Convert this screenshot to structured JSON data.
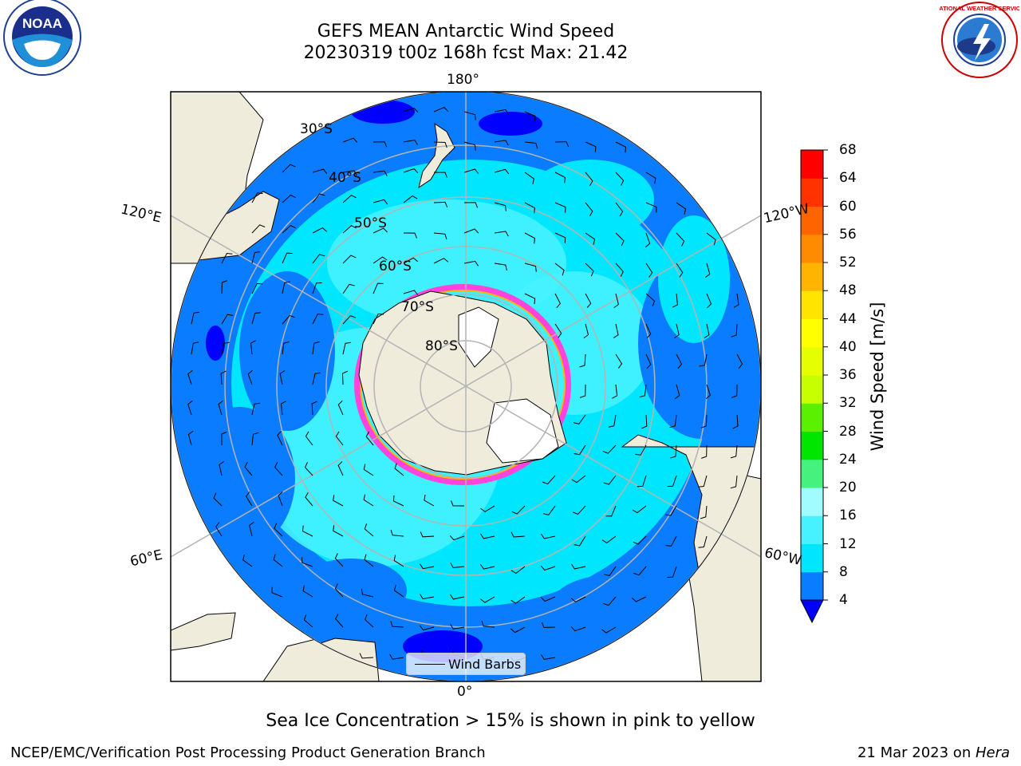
{
  "title": {
    "line1": "GEFS MEAN Antarctic Wind Speed",
    "line2": "20230319 t00z 168h fcst   Max: 21.42"
  },
  "map": {
    "projection": "south-polar-stereographic",
    "longitude_labels": [
      "180°",
      "120°E",
      "120°W",
      "60°E",
      "60°W",
      "0°"
    ],
    "latitude_labels": [
      "30°S",
      "40°S",
      "50°S",
      "60°S",
      "70°S",
      "80°S"
    ],
    "legend_label": "Wind Barbs"
  },
  "colorbar": {
    "title": "Wind Speed [m/s]",
    "ticks": [
      "68",
      "64",
      "60",
      "56",
      "52",
      "48",
      "44",
      "40",
      "36",
      "32",
      "28",
      "24",
      "20",
      "16",
      "12",
      "8",
      "4"
    ],
    "colors": [
      "#0000ff",
      "#0a7cff",
      "#00e6ff",
      "#46f2ff",
      "#a0fcff",
      "#46f27d",
      "#00e600",
      "#5af000",
      "#c8ff00",
      "#e6ff00",
      "#ffff00",
      "#ffe400",
      "#ffb400",
      "#ff8c00",
      "#ff6400",
      "#ff3200",
      "#ff0000"
    ]
  },
  "note": "Sea Ice Concentration > 15% is shown in pink to yellow",
  "footer": {
    "left": "NCEP/EMC/Verification Post Processing Product Generation Branch",
    "right_date": "21 Mar 2023 on ",
    "right_host": "Hera"
  },
  "logos": {
    "noaa_text": "NOAA",
    "nws_text": "NATIONAL WEATHER SERVICE"
  }
}
